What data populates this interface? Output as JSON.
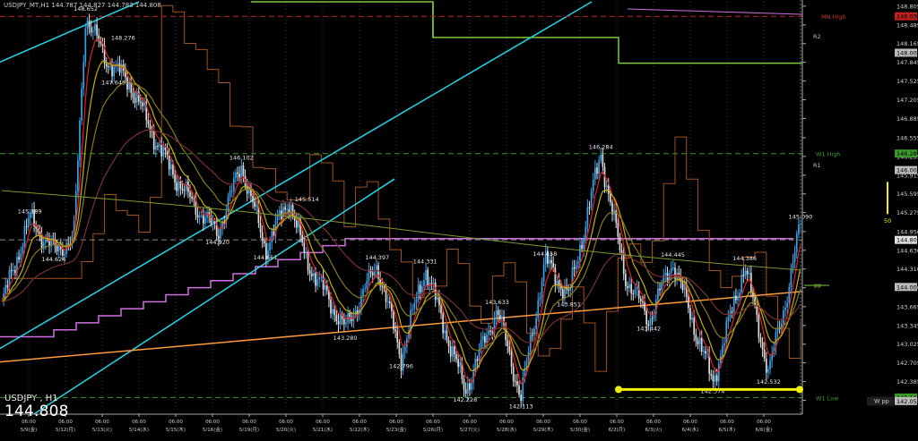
{
  "window": {
    "title": "USDJPY_MT,H1",
    "ohlc": "144.787 144.827 144.783 144.808"
  },
  "symbol_block": {
    "symbol": "USDJPY , H1",
    "price": "144.808"
  },
  "colors": {
    "background": "#000000",
    "bull_candle": "#3aa0e8",
    "bear_candle": "#dcdcdc",
    "cyan_lines": "#20d8ec",
    "green_step": "#7ec83a",
    "magenta_step": "#d070e0",
    "orange_trend": "#ff9a3c",
    "yellow_marker": "#f0f000",
    "ma_red": "#e02020",
    "ma_yellow": "#c8b000",
    "ma_olive": "#8a7a20",
    "ma_green_long": "#7a9a30",
    "ma_maroon": "#7a3030",
    "brown_step": "#a05020",
    "grid": "#3a3a3a"
  },
  "right_markers": {
    "mn_high": "MN High",
    "r2": "R2",
    "w1_high": "W1 High",
    "r1": "R1",
    "pp": "pp",
    "w1_low": "W1 Low",
    "w_pp": "W pp",
    "fifty": "50"
  },
  "chart_data": {
    "type": "candlestick",
    "title": "USDJPY_MT,H1",
    "ylim": [
      141.95,
      148.88
    ],
    "y_ticks": [
      "148.805",
      "148.485",
      "148.165",
      "147.845",
      "147.525",
      "147.205",
      "146.885",
      "146.555",
      "146.235",
      "145.915",
      "145.595",
      "145.275",
      "144.950",
      "144.630",
      "144.310",
      "143.990",
      "143.665",
      "143.345",
      "143.025",
      "142.705",
      "142.385",
      "142.065"
    ],
    "price_badges": [
      {
        "text": "148.632",
        "value": 148.632,
        "color": "#c02020"
      },
      {
        "text": "148.009",
        "value": 148.009,
        "color": "#bbbbbb"
      },
      {
        "text": "146.284",
        "value": 146.284,
        "color": "#3a9a2a"
      },
      {
        "text": "146.002",
        "value": 146.002,
        "color": "#bbbbbb"
      },
      {
        "text": "144.808",
        "value": 144.808,
        "color": "#e0e0e0"
      },
      {
        "text": "144.003",
        "value": 144.003,
        "color": "#bbbbbb"
      },
      {
        "text": "142.113",
        "value": 142.113,
        "color": "#3a9a2a"
      },
      {
        "text": "142.052",
        "value": 142.052,
        "color": "#bbbbbb"
      }
    ],
    "x_labels": [
      {
        "top": "06:00",
        "bottom": "5/9(金)"
      },
      {
        "top": "06:00",
        "bottom": "5/12(月)"
      },
      {
        "top": "06:00",
        "bottom": "5/13(火)"
      },
      {
        "top": "06:00",
        "bottom": "5/14(水)"
      },
      {
        "top": "06:00",
        "bottom": "5/15(木)"
      },
      {
        "top": "06:00",
        "bottom": "5/16(金)"
      },
      {
        "top": "06:00",
        "bottom": "5/19(月)"
      },
      {
        "top": "06:00",
        "bottom": "5/20(火)"
      },
      {
        "top": "06:00",
        "bottom": "5/21(水)"
      },
      {
        "top": "06:00",
        "bottom": "5/22(木)"
      },
      {
        "top": "06:00",
        "bottom": "5/23(金)"
      },
      {
        "top": "06:00",
        "bottom": "5/26(月)"
      },
      {
        "top": "06:00",
        "bottom": "5/27(火)"
      },
      {
        "top": "06:00",
        "bottom": "5/28(水)"
      },
      {
        "top": "06:00",
        "bottom": "5/29(木)"
      },
      {
        "top": "06:00",
        "bottom": "5/30(金)"
      },
      {
        "top": "06:00",
        "bottom": "6/2(月)"
      },
      {
        "top": "06:00",
        "bottom": "6/3(火)"
      },
      {
        "top": "06:00",
        "bottom": "6/4(水)"
      },
      {
        "top": "06:00",
        "bottom": "6/5(木)"
      },
      {
        "top": "06:00",
        "bottom": "6/6(金)"
      }
    ],
    "anchors": [
      {
        "t": 0,
        "v": 143.7
      },
      {
        "t": 0.035,
        "v": 145.18
      },
      {
        "t": 0.065,
        "v": 144.62
      },
      {
        "t": 0.09,
        "v": 144.82
      },
      {
        "t": 0.105,
        "v": 148.65
      },
      {
        "t": 0.13,
        "v": 147.9
      },
      {
        "t": 0.16,
        "v": 147.5
      },
      {
        "t": 0.2,
        "v": 146.3
      },
      {
        "t": 0.23,
        "v": 145.6
      },
      {
        "t": 0.27,
        "v": 144.92
      },
      {
        "t": 0.3,
        "v": 146.1
      },
      {
        "t": 0.33,
        "v": 144.66
      },
      {
        "t": 0.36,
        "v": 145.5
      },
      {
        "t": 0.38,
        "v": 144.5
      },
      {
        "t": 0.43,
        "v": 143.28
      },
      {
        "t": 0.47,
        "v": 144.39
      },
      {
        "t": 0.5,
        "v": 142.8
      },
      {
        "t": 0.53,
        "v": 144.33
      },
      {
        "t": 0.58,
        "v": 142.23
      },
      {
        "t": 0.62,
        "v": 143.63
      },
      {
        "t": 0.65,
        "v": 142.11
      },
      {
        "t": 0.68,
        "v": 144.46
      },
      {
        "t": 0.71,
        "v": 143.85
      },
      {
        "t": 0.75,
        "v": 146.28
      },
      {
        "t": 0.78,
        "v": 144.2
      },
      {
        "t": 0.81,
        "v": 143.44
      },
      {
        "t": 0.84,
        "v": 144.45
      },
      {
        "t": 0.89,
        "v": 142.37
      },
      {
        "t": 0.93,
        "v": 144.39
      },
      {
        "t": 0.96,
        "v": 142.53
      },
      {
        "t": 0.985,
        "v": 144.0
      },
      {
        "t": 1.0,
        "v": 145.09
      }
    ],
    "annotations": [
      {
        "text": "148.652",
        "t": 0.105,
        "v": 148.652,
        "pos": "above"
      },
      {
        "text": "148.276",
        "t": 0.13,
        "v": 148.276,
        "pos": "right"
      },
      {
        "text": "147.645",
        "t": 0.14,
        "v": 147.645,
        "pos": "below"
      },
      {
        "text": "145.189",
        "t": 0.035,
        "v": 145.189,
        "pos": "above"
      },
      {
        "text": "144.624",
        "t": 0.065,
        "v": 144.624,
        "pos": "below"
      },
      {
        "text": "146.102",
        "t": 0.3,
        "v": 146.102,
        "pos": "above"
      },
      {
        "text": "144.920",
        "t": 0.27,
        "v": 144.92,
        "pos": "below"
      },
      {
        "text": "145.514",
        "t": 0.36,
        "v": 145.514,
        "pos": "right"
      },
      {
        "text": "144.661",
        "t": 0.33,
        "v": 144.661,
        "pos": "below"
      },
      {
        "text": "144.397",
        "t": 0.47,
        "v": 144.397,
        "pos": "above"
      },
      {
        "text": "144.331",
        "t": 0.53,
        "v": 144.331,
        "pos": "above"
      },
      {
        "text": "143.280",
        "t": 0.43,
        "v": 143.28,
        "pos": "below"
      },
      {
        "text": "142.796",
        "t": 0.5,
        "v": 142.796,
        "pos": "below"
      },
      {
        "text": "143.633",
        "t": 0.62,
        "v": 143.633,
        "pos": "above"
      },
      {
        "text": "142.228",
        "t": 0.58,
        "v": 142.228,
        "pos": "below"
      },
      {
        "text": "142.113",
        "t": 0.65,
        "v": 142.113,
        "pos": "below"
      },
      {
        "text": "144.458",
        "t": 0.68,
        "v": 144.458,
        "pos": "above"
      },
      {
        "text": "143.851",
        "t": 0.71,
        "v": 143.851,
        "pos": "below"
      },
      {
        "text": "146.284",
        "t": 0.75,
        "v": 146.284,
        "pos": "above"
      },
      {
        "text": "144.445",
        "t": 0.84,
        "v": 144.445,
        "pos": "above"
      },
      {
        "text": "143.442",
        "t": 0.81,
        "v": 143.442,
        "pos": "below"
      },
      {
        "text": "142.374",
        "t": 0.89,
        "v": 142.374,
        "pos": "below"
      },
      {
        "text": "144.386",
        "t": 0.93,
        "v": 144.386,
        "pos": "above"
      },
      {
        "text": "142.532",
        "t": 0.96,
        "v": 142.532,
        "pos": "below"
      },
      {
        "text": "145.090",
        "t": 1.0,
        "v": 145.09,
        "pos": "above"
      }
    ]
  }
}
